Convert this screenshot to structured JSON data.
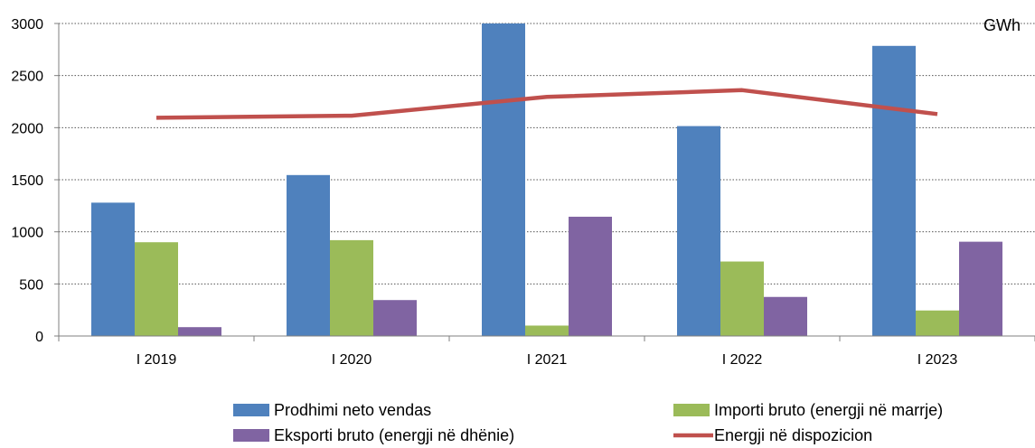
{
  "chart_data": {
    "type": "bar",
    "unit_label": "GWh",
    "categories": [
      "I 2019",
      "I 2020",
      "I 2021",
      "I 2022",
      "I 2023"
    ],
    "ylim": [
      0,
      3000
    ],
    "yticks": [
      0,
      500,
      1000,
      1500,
      2000,
      2500,
      3000
    ],
    "grid": true,
    "legend_position": "bottom",
    "series": [
      {
        "name": "Prodhimi neto vendas",
        "kind": "bar",
        "color": "#4f81bd",
        "values": [
          1280,
          1545,
          3010,
          2015,
          2785
        ]
      },
      {
        "name": "Importi bruto (energji në marrje)",
        "kind": "bar",
        "color": "#9bbb59",
        "values": [
          900,
          920,
          100,
          715,
          245
        ]
      },
      {
        "name": "Eksporti bruto (energji në dhënie)",
        "kind": "bar",
        "color": "#8064a2",
        "values": [
          85,
          345,
          1145,
          375,
          905
        ]
      },
      {
        "name": "Energji në dispozicion",
        "kind": "line",
        "color": "#c0504d",
        "values": [
          2095,
          2115,
          2295,
          2360,
          2130
        ]
      }
    ]
  }
}
